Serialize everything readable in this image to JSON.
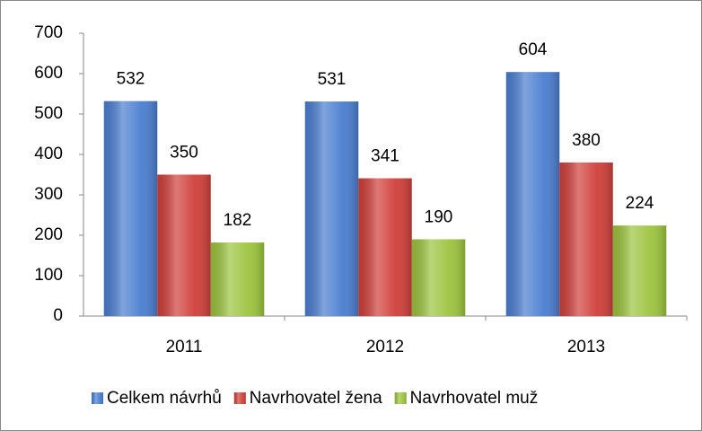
{
  "chart_data": {
    "type": "bar",
    "categories": [
      "2011",
      "2012",
      "2013"
    ],
    "series": [
      {
        "name": "Celkem návrhů",
        "color": "#4a7ed0",
        "values": [
          532,
          531,
          604
        ]
      },
      {
        "name": "Navrhovatel žena",
        "color": "#d0403b",
        "values": [
          350,
          341,
          380
        ]
      },
      {
        "name": "Navrhovatel muž",
        "color": "#9cc43e",
        "values": [
          182,
          190,
          224
        ]
      }
    ],
    "ylim": [
      0,
      700
    ],
    "yticks": [
      0,
      100,
      200,
      300,
      400,
      500,
      600,
      700
    ],
    "grid": false,
    "legend": "bottom"
  }
}
